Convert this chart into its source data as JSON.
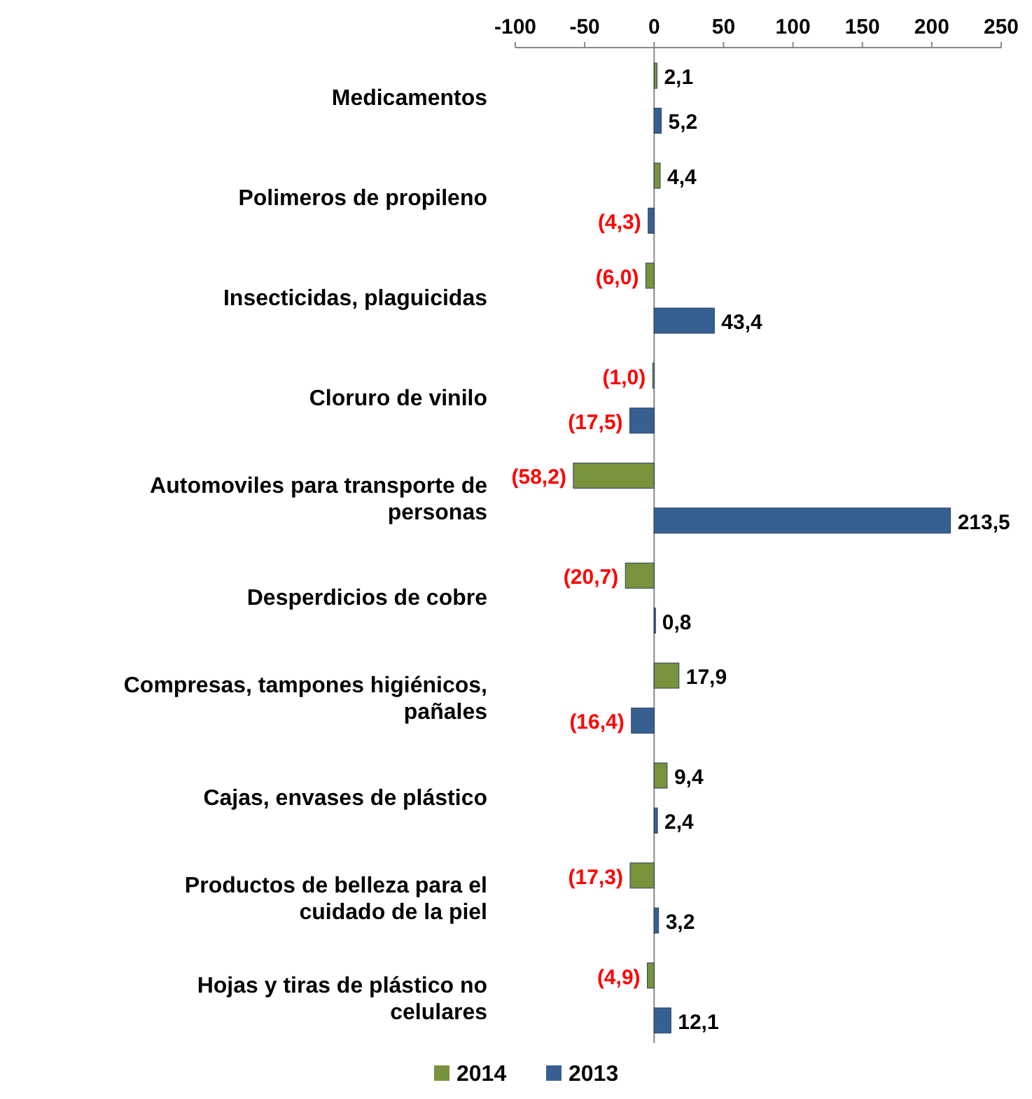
{
  "chart_data": {
    "type": "bar",
    "orientation": "horizontal",
    "categories": [
      "Medicamentos",
      "Polimeros de propileno",
      "Insecticidas, plaguicidas",
      "Cloruro de vinilo",
      "Automoviles para transporte de personas",
      "Desperdicios de cobre",
      "Compresas, tampones higiénicos, pañales",
      "Cajas, envases de plástico",
      "Productos de belleza para el cuidado de la piel",
      "Hojas y tiras de plástico no celulares"
    ],
    "series": [
      {
        "name": "2014",
        "color": "#77933c",
        "values": [
          2.1,
          4.4,
          -6.0,
          -1.0,
          -58.2,
          -20.7,
          17.9,
          9.4,
          -17.3,
          -4.9
        ],
        "value_labels": [
          "2,1",
          "4,4",
          "(6,0)",
          "(1,0)",
          "(58,2)",
          "(20,7)",
          "17,9",
          "9,4",
          "(17,3)",
          "(4,9)"
        ]
      },
      {
        "name": "2013",
        "color": "#376092",
        "values": [
          5.2,
          -4.3,
          43.4,
          -17.5,
          213.5,
          0.8,
          -16.4,
          2.4,
          3.2,
          12.1
        ],
        "value_labels": [
          "5,2",
          "(4,3)",
          "43,4",
          "(17,5)",
          "213,5",
          "0,8",
          "(16,4)",
          "2,4",
          "3,2",
          "12,1"
        ]
      }
    ],
    "xlim": [
      -100,
      250
    ],
    "xticks": [
      -100,
      -50,
      0,
      50,
      100,
      150,
      200,
      250
    ],
    "legend": "bottom"
  }
}
